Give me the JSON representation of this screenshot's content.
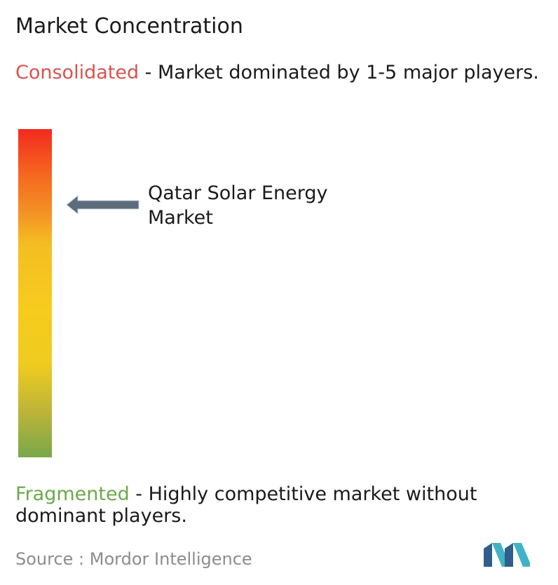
{
  "title": "Market Concentration",
  "consolidated": {
    "keyword": "Consolidated",
    "description": " - Market dominated by 1-5 major players."
  },
  "fragmented": {
    "keyword": "Fragmented",
    "description": " - Highly competitive market without dominant players."
  },
  "marker": {
    "label": "Qatar Solar Energy Market"
  },
  "source": "Source : Mordor Intelligence",
  "colors": {
    "consolidated": "#d9534f",
    "fragmented": "#6aaa4a",
    "arrow": "#5b6c7c",
    "gradient_top": "#f42a1f",
    "gradient_mid": "#f6cc1e",
    "gradient_bottom": "#78a84a",
    "logo_dark": "#2f5f8a",
    "logo_light": "#41b3c6"
  },
  "chart_data": {
    "type": "gauge",
    "scale_top": "Consolidated",
    "scale_bottom": "Fragmented",
    "marker_label": "Qatar Solar Energy Market",
    "marker_level": 0.78
  }
}
